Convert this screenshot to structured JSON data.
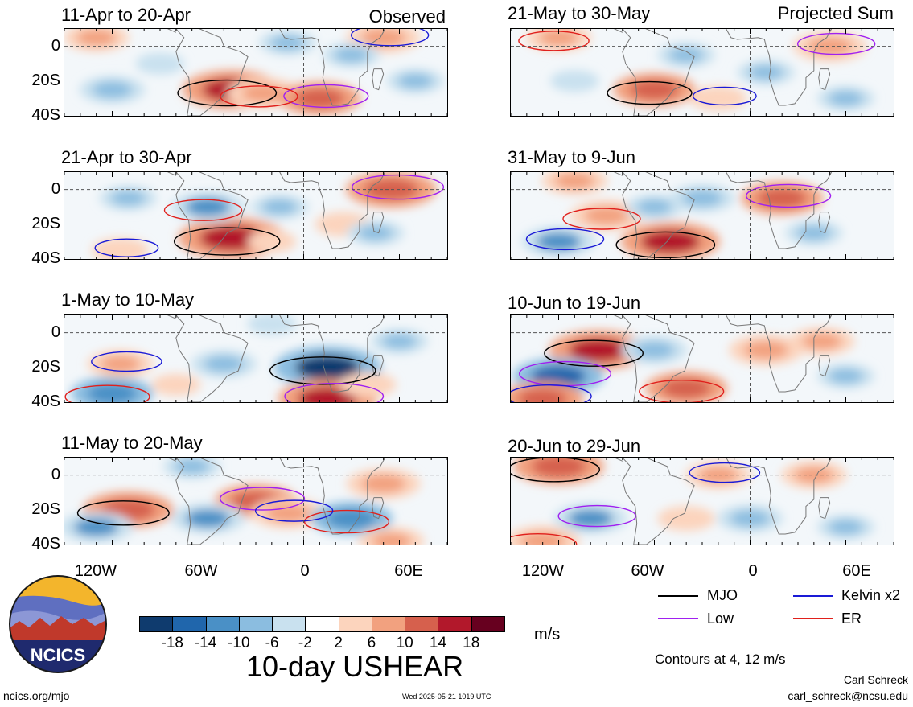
{
  "section_labels": {
    "observed": "Observed",
    "projected": "Projected Sum"
  },
  "chart_data": [
    {
      "type": "heatmap",
      "title": "11-Apr to 20-Apr",
      "column": "observed",
      "x_ticks": [
        "120W",
        "60W",
        "0",
        "60E"
      ],
      "y_ticks": [
        "0",
        "20S",
        "40S"
      ],
      "blobs": [
        {
          "lon": -45,
          "lat": -25,
          "v": 16
        },
        {
          "lon": -25,
          "lat": -27,
          "v": 10
        },
        {
          "lon": 10,
          "lat": -30,
          "v": 12
        },
        {
          "lon": 50,
          "lat": 5,
          "v": 10
        },
        {
          "lon": -130,
          "lat": 5,
          "v": 8
        },
        {
          "lon": -120,
          "lat": -25,
          "v": -8
        },
        {
          "lon": -10,
          "lat": 2,
          "v": -6
        },
        {
          "lon": 30,
          "lat": -5,
          "v": -6
        },
        {
          "lon": -90,
          "lat": -10,
          "v": -4
        },
        {
          "lon": 70,
          "lat": -20,
          "v": -6
        }
      ]
    },
    {
      "type": "heatmap",
      "title": "21-Apr to 30-Apr",
      "column": "observed",
      "x_ticks": [
        "120W",
        "60W",
        "0",
        "60E"
      ],
      "y_ticks": [
        "0",
        "20S",
        "40S"
      ],
      "blobs": [
        {
          "lon": -45,
          "lat": -28,
          "v": 18
        },
        {
          "lon": 55,
          "lat": 0,
          "v": 14
        },
        {
          "lon": -115,
          "lat": -35,
          "v": 6
        },
        {
          "lon": 25,
          "lat": -20,
          "v": 6
        },
        {
          "lon": -60,
          "lat": -10,
          "v": -10
        },
        {
          "lon": -15,
          "lat": -10,
          "v": -6
        },
        {
          "lon": -110,
          "lat": -5,
          "v": -6
        },
        {
          "lon": 45,
          "lat": -25,
          "v": -6
        },
        {
          "lon": -20,
          "lat": -30,
          "v": 4
        }
      ]
    },
    {
      "type": "heatmap",
      "title": "1-May to 10-May",
      "column": "observed",
      "x_ticks": [
        "120W",
        "60W",
        "0",
        "60E"
      ],
      "y_ticks": [
        "0",
        "20S",
        "40S"
      ],
      "blobs": [
        {
          "lon": 15,
          "lat": -20,
          "v": -18
        },
        {
          "lon": -120,
          "lat": -35,
          "v": -12
        },
        {
          "lon": 15,
          "lat": -38,
          "v": 16
        },
        {
          "lon": -115,
          "lat": -18,
          "v": 8
        },
        {
          "lon": -50,
          "lat": -18,
          "v": -8
        },
        {
          "lon": -20,
          "lat": 5,
          "v": -4
        },
        {
          "lon": 60,
          "lat": -5,
          "v": -6
        },
        {
          "lon": 40,
          "lat": -30,
          "v": 6
        },
        {
          "lon": -80,
          "lat": -30,
          "v": 4
        }
      ]
    },
    {
      "type": "heatmap",
      "title": "11-May to 20-May",
      "column": "observed",
      "x_ticks": [
        "120W",
        "60W",
        "0",
        "60E"
      ],
      "y_ticks": [
        "0",
        "20S",
        "40S"
      ],
      "blobs": [
        {
          "lon": -30,
          "lat": -15,
          "v": 12
        },
        {
          "lon": -10,
          "lat": -22,
          "v": 10
        },
        {
          "lon": -110,
          "lat": -20,
          "v": 14
        },
        {
          "lon": 50,
          "lat": -5,
          "v": 10
        },
        {
          "lon": -130,
          "lat": -30,
          "v": -10
        },
        {
          "lon": -60,
          "lat": -25,
          "v": -10
        },
        {
          "lon": 30,
          "lat": -25,
          "v": -12
        },
        {
          "lon": -70,
          "lat": 5,
          "v": -6
        },
        {
          "lon": 55,
          "lat": -38,
          "v": 8
        }
      ]
    },
    {
      "type": "heatmap",
      "title": "21-May to 30-May",
      "column": "projected",
      "x_ticks": [
        "120W",
        "60W",
        "0",
        "60E"
      ],
      "y_ticks": [
        "0",
        "20S",
        "40S"
      ],
      "blobs": [
        {
          "lon": -60,
          "lat": -25,
          "v": 12
        },
        {
          "lon": 50,
          "lat": 0,
          "v": 10
        },
        {
          "lon": -120,
          "lat": 5,
          "v": 8
        },
        {
          "lon": -20,
          "lat": -30,
          "v": 6
        },
        {
          "lon": -40,
          "lat": -5,
          "v": -6
        },
        {
          "lon": 10,
          "lat": -15,
          "v": -6
        },
        {
          "lon": -110,
          "lat": -20,
          "v": -4
        },
        {
          "lon": 60,
          "lat": -30,
          "v": -6
        }
      ]
    },
    {
      "type": "heatmap",
      "title": "31-May to 9-Jun",
      "column": "projected",
      "x_ticks": [
        "120W",
        "60W",
        "0",
        "60E"
      ],
      "y_ticks": [
        "0",
        "20S",
        "40S"
      ],
      "blobs": [
        {
          "lon": -50,
          "lat": -30,
          "v": 16
        },
        {
          "lon": 20,
          "lat": -5,
          "v": 12
        },
        {
          "lon": -90,
          "lat": -15,
          "v": 10
        },
        {
          "lon": -110,
          "lat": 5,
          "v": 8
        },
        {
          "lon": -30,
          "lat": -5,
          "v": -8
        },
        {
          "lon": -120,
          "lat": -30,
          "v": -10
        },
        {
          "lon": 40,
          "lat": -25,
          "v": -6
        },
        {
          "lon": -60,
          "lat": -10,
          "v": -6
        }
      ]
    },
    {
      "type": "heatmap",
      "title": "10-Jun to 19-Jun",
      "column": "projected",
      "x_ticks": [
        "120W",
        "60W",
        "0",
        "60E"
      ],
      "y_ticks": [
        "0",
        "20S",
        "40S"
      ],
      "blobs": [
        {
          "lon": -95,
          "lat": -10,
          "v": 16
        },
        {
          "lon": 10,
          "lat": -10,
          "v": 10
        },
        {
          "lon": -40,
          "lat": -32,
          "v": 12
        },
        {
          "lon": 45,
          "lat": -5,
          "v": 8
        },
        {
          "lon": -120,
          "lat": -25,
          "v": -14
        },
        {
          "lon": -60,
          "lat": -10,
          "v": -8
        },
        {
          "lon": 60,
          "lat": -25,
          "v": -6
        },
        {
          "lon": -130,
          "lat": -38,
          "v": 12
        }
      ]
    },
    {
      "type": "heatmap",
      "title": "20-Jun to 29-Jun",
      "column": "projected",
      "x_ticks": [
        "120W",
        "60W",
        "0",
        "60E"
      ],
      "y_ticks": [
        "0",
        "20S",
        "40S"
      ],
      "blobs": [
        {
          "lon": -120,
          "lat": 5,
          "v": 14
        },
        {
          "lon": -20,
          "lat": 0,
          "v": 8
        },
        {
          "lon": 40,
          "lat": 0,
          "v": 8
        },
        {
          "lon": -40,
          "lat": -25,
          "v": 6
        },
        {
          "lon": -100,
          "lat": -25,
          "v": -10
        },
        {
          "lon": 0,
          "lat": -25,
          "v": -8
        },
        {
          "lon": 60,
          "lat": -30,
          "v": -6
        },
        {
          "lon": -130,
          "lat": -38,
          "v": 10
        }
      ]
    }
  ],
  "colorbar": {
    "ticks": [
      "-18",
      "-14",
      "-10",
      "-6",
      "-2",
      "2",
      "6",
      "10",
      "14",
      "18"
    ],
    "colors": [
      "#0f3b6e",
      "#2066ac",
      "#4a90c6",
      "#8bbde0",
      "#c9e1ef",
      "#ffffff",
      "#fcd4bd",
      "#f2a17f",
      "#d6604d",
      "#b2182b",
      "#67001f"
    ],
    "unit": "m/s"
  },
  "legend": {
    "items": [
      {
        "label": "MJO",
        "color": "#000000"
      },
      {
        "label": "Kelvin x2",
        "color": "#1a1ad6"
      },
      {
        "label": "Low",
        "color": "#a020f0"
      },
      {
        "label": "ER",
        "color": "#e0201c"
      }
    ],
    "contours_note": "Contours at 4, 12 m/s"
  },
  "main_title": "10-day USHEAR",
  "logo_text": "NCICS",
  "footer": {
    "left": "ncics.org/mjo",
    "center": "Wed 2025-05-21 1019 UTC",
    "author": "Carl Schreck",
    "email": "carl_schreck@ncsu.edu"
  }
}
